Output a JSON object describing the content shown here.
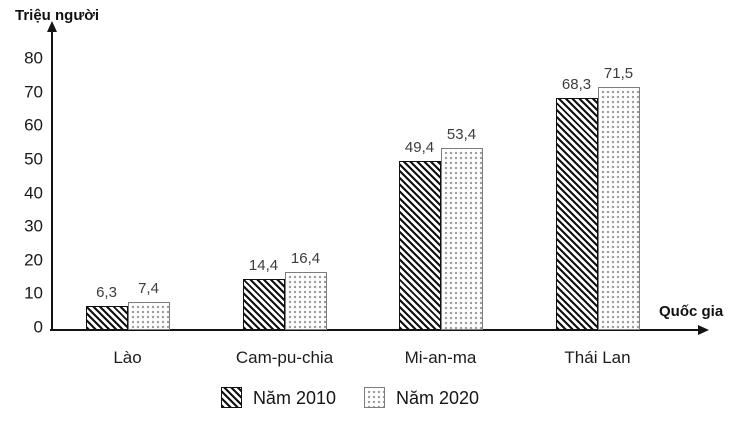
{
  "chart_data": {
    "type": "bar",
    "title": "",
    "ylabel": "Triệu người",
    "xlabel": "Quốc gia",
    "categories": [
      "Lào",
      "Cam-pu-chia",
      "Mi-an-ma",
      "Thái Lan"
    ],
    "series": [
      {
        "name": "Năm 2010",
        "values": [
          6.3,
          14.4,
          49.4,
          68.3
        ],
        "value_labels": [
          "6,3",
          "14,4",
          "49,4",
          "68,3"
        ],
        "pattern": "diagonal-hatch"
      },
      {
        "name": "Năm 2020",
        "values": [
          7.4,
          16.4,
          53.4,
          71.5
        ],
        "value_labels": [
          "7,4",
          "16,4",
          "53,4",
          "71,5"
        ],
        "pattern": "dots"
      }
    ],
    "y_ticks": [
      0,
      10,
      20,
      30,
      40,
      50,
      60,
      70,
      80
    ],
    "ylim": [
      0,
      80
    ],
    "grid": false,
    "legend_position": "bottom"
  },
  "colors": {
    "axis": "#141414",
    "hatch_fill": "#111111",
    "dot_border": "#7d7d7d",
    "value_label": "#3d3d3d",
    "text": "#1a1a1a"
  }
}
